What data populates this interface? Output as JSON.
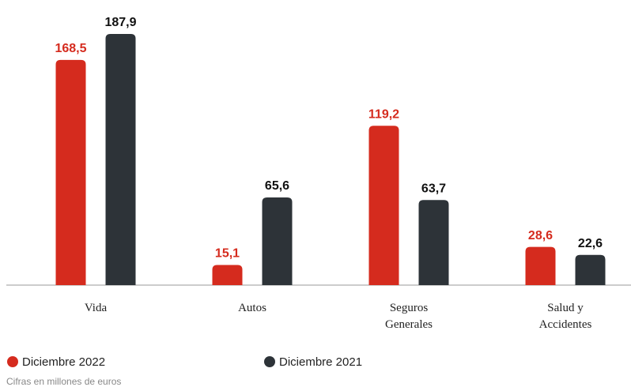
{
  "chart_data": {
    "type": "bar",
    "categories": [
      "Vida",
      "Autos",
      "Seguros Generales",
      "Salud y Accidentes"
    ],
    "series": [
      {
        "name": "Diciembre 2022",
        "color": "#d52b1e",
        "values": [
          168.5,
          15.1,
          119.2,
          28.6
        ],
        "value_labels": [
          "168,5",
          "15,1",
          "119,2",
          "28,6"
        ]
      },
      {
        "name": "Diciembre 2021",
        "color": "#2d3338",
        "values": [
          187.9,
          65.6,
          63.7,
          22.6
        ],
        "value_labels": [
          "187,9",
          "65,6",
          "63,7",
          "22,6"
        ]
      }
    ],
    "note": "Cifras en millones de euros"
  }
}
